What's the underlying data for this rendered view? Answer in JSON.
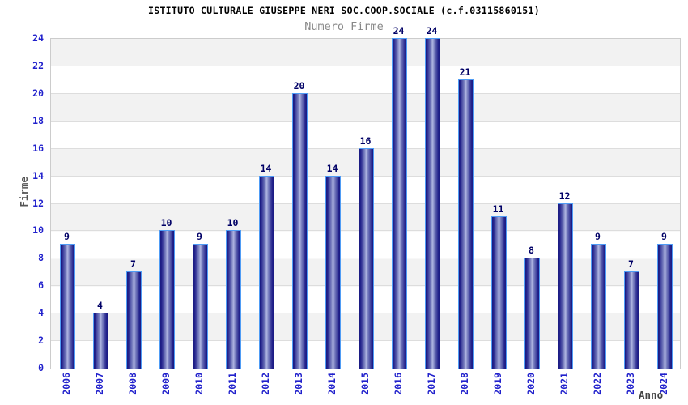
{
  "header": {
    "title": "ISTITUTO CULTURALE GIUSEPPE NERI SOC.COOP.SOCIALE (c.f.03115860151)",
    "subtitle": "Numero Firme"
  },
  "chart_data": {
    "type": "bar",
    "title": "Numero Firme",
    "categories": [
      "2006",
      "2007",
      "2008",
      "2009",
      "2010",
      "2011",
      "2012",
      "2013",
      "2014",
      "2015",
      "2016",
      "2017",
      "2018",
      "2019",
      "2020",
      "2021",
      "2022",
      "2023",
      "2024"
    ],
    "values": [
      9,
      4,
      7,
      10,
      9,
      10,
      14,
      20,
      14,
      16,
      24,
      24,
      21,
      11,
      8,
      12,
      9,
      7,
      9
    ],
    "xlabel": "Anno",
    "ylabel": "Firme",
    "ylim": [
      0,
      24
    ],
    "yticks": [
      0,
      2,
      4,
      6,
      8,
      10,
      12,
      14,
      16,
      18,
      20,
      22,
      24
    ],
    "grid": "horizontal-bands",
    "legend_position": "none",
    "colors": {
      "tick_label": "#2121cc",
      "value_label": "#000066",
      "axis_title": "#555555",
      "subtitle_text": "#888888",
      "band_gray": "#f2f2f2",
      "grid_line": "#dddddd",
      "plot_border": "#cccccc",
      "bar_dark": "#191980",
      "bar_highlight": "#b0b6e2",
      "bar_outline": "#4f9cf5"
    }
  }
}
